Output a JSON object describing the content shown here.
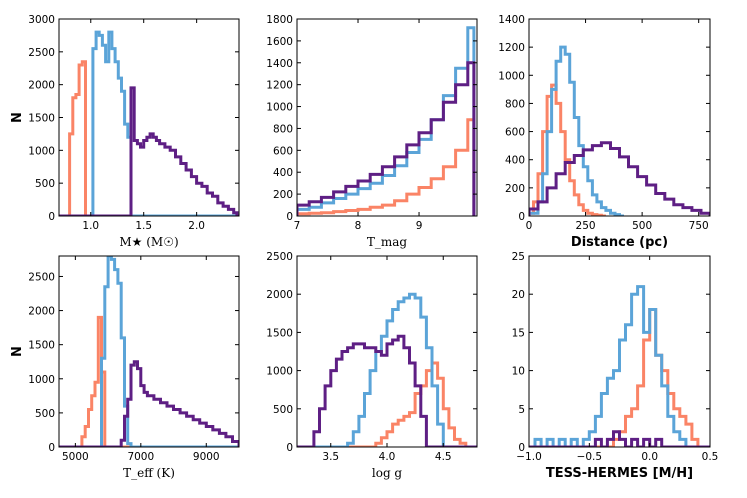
{
  "colors": {
    "orange": "#fa8466",
    "blue": "#5ba4d8",
    "purple": "#5e1f84"
  },
  "ylabel": "N",
  "chart_data": [
    {
      "type": "histogram",
      "xlabel": "M★ (M☉)",
      "xlim": [
        0.7,
        2.4
      ],
      "ylim": [
        0,
        3000
      ],
      "xticks": [
        1.0,
        1.5,
        2.0
      ],
      "xtick_labels": [
        "1.0",
        "1.5",
        "2.0"
      ],
      "yticks": [
        0,
        500,
        1000,
        1500,
        2000,
        2500,
        3000
      ],
      "ytick_labels": [
        "0",
        "500",
        "1000",
        "1500",
        "2000",
        "2500",
        "3000"
      ],
      "series": [
        {
          "name": "orange",
          "color": "orange",
          "edges": [
            0.7,
            0.8,
            0.83,
            0.86,
            0.89,
            0.92,
            0.95,
            0.98,
            1.0,
            2.4
          ],
          "values": [
            0,
            1250,
            1800,
            1850,
            2300,
            2350,
            0,
            0,
            0
          ]
        },
        {
          "name": "blue",
          "color": "blue",
          "edges": [
            0.7,
            1.02,
            1.05,
            1.08,
            1.11,
            1.14,
            1.17,
            1.2,
            1.23,
            1.26,
            1.29,
            1.32,
            1.35,
            1.38,
            2.4
          ],
          "values": [
            0,
            2550,
            2800,
            2750,
            2600,
            2350,
            2800,
            2550,
            2350,
            2100,
            1900,
            1400,
            1200,
            0
          ]
        },
        {
          "name": "purple",
          "color": "purple",
          "edges": [
            0.7,
            1.38,
            1.41,
            1.44,
            1.47,
            1.5,
            1.53,
            1.56,
            1.59,
            1.62,
            1.65,
            1.7,
            1.75,
            1.8,
            1.85,
            1.9,
            1.95,
            2.0,
            2.05,
            2.1,
            2.15,
            2.2,
            2.25,
            2.3,
            2.35,
            2.38,
            2.4
          ],
          "values": [
            0,
            1950,
            1150,
            1100,
            1050,
            1150,
            1200,
            1250,
            1200,
            1150,
            1100,
            1050,
            1000,
            900,
            800,
            700,
            600,
            500,
            450,
            350,
            300,
            200,
            150,
            100,
            50,
            0
          ]
        }
      ]
    },
    {
      "type": "histogram",
      "xlabel": "T_mag",
      "xlim": [
        7,
        9.95
      ],
      "ylim": [
        0,
        1800
      ],
      "xticks": [
        7,
        8,
        9
      ],
      "xtick_labels": [
        "7",
        "8",
        "9"
      ],
      "yticks": [
        0,
        200,
        400,
        600,
        800,
        1000,
        1200,
        1400,
        1600,
        1800
      ],
      "ytick_labels": [
        "0",
        "200",
        "400",
        "600",
        "800",
        "1000",
        "1200",
        "1400",
        "1600",
        "1800"
      ],
      "series": [
        {
          "name": "orange",
          "color": "orange",
          "edges": [
            7,
            7.2,
            7.4,
            7.6,
            7.8,
            8,
            8.2,
            8.4,
            8.6,
            8.8,
            9,
            9.2,
            9.4,
            9.6,
            9.8,
            9.9
          ],
          "values": [
            20,
            25,
            30,
            40,
            50,
            60,
            80,
            100,
            140,
            200,
            260,
            340,
            450,
            600,
            880
          ]
        },
        {
          "name": "blue",
          "color": "blue",
          "edges": [
            7,
            7.2,
            7.4,
            7.6,
            7.8,
            8,
            8.2,
            8.4,
            8.6,
            8.8,
            9,
            9.2,
            9.4,
            9.6,
            9.8,
            9.9
          ],
          "values": [
            60,
            80,
            120,
            160,
            200,
            250,
            300,
            370,
            460,
            580,
            700,
            880,
            1100,
            1350,
            1720
          ]
        },
        {
          "name": "purple",
          "color": "purple",
          "edges": [
            7,
            7.2,
            7.4,
            7.6,
            7.8,
            8,
            8.2,
            8.4,
            8.6,
            8.8,
            9,
            9.2,
            9.4,
            9.6,
            9.8,
            9.9
          ],
          "values": [
            100,
            130,
            170,
            220,
            270,
            320,
            380,
            450,
            540,
            650,
            760,
            880,
            1040,
            1200,
            1400
          ]
        }
      ]
    },
    {
      "type": "histogram",
      "xlabel": "Distance (pc)",
      "xlim": [
        0,
        800
      ],
      "ylim": [
        0,
        1400
      ],
      "xticks": [
        0,
        250,
        500,
        750
      ],
      "xtick_labels": [
        "0",
        "250",
        "500",
        "750"
      ],
      "yticks": [
        0,
        200,
        400,
        600,
        800,
        1000,
        1200,
        1400
      ],
      "ytick_labels": [
        "0",
        "200",
        "400",
        "600",
        "800",
        "1000",
        "1200",
        "1400"
      ],
      "series": [
        {
          "name": "orange",
          "color": "orange",
          "edges": [
            0,
            20,
            40,
            60,
            80,
            100,
            120,
            140,
            160,
            180,
            200,
            220,
            240,
            260,
            280,
            300,
            320,
            340
          ],
          "values": [
            20,
            100,
            300,
            600,
            850,
            930,
            800,
            600,
            400,
            250,
            150,
            80,
            40,
            20,
            10,
            5,
            0
          ]
        },
        {
          "name": "blue",
          "color": "blue",
          "edges": [
            0,
            40,
            60,
            80,
            100,
            120,
            140,
            160,
            180,
            200,
            220,
            240,
            260,
            280,
            300,
            320,
            340,
            360,
            380,
            400,
            420
          ],
          "values": [
            20,
            100,
            300,
            600,
            900,
            1100,
            1200,
            1150,
            950,
            700,
            500,
            350,
            250,
            150,
            100,
            60,
            40,
            20,
            10,
            0
          ]
        },
        {
          "name": "purple",
          "color": "purple",
          "edges": [
            0,
            40,
            80,
            120,
            160,
            200,
            240,
            280,
            320,
            360,
            400,
            440,
            480,
            520,
            560,
            600,
            640,
            680,
            720,
            760,
            800
          ],
          "values": [
            50,
            100,
            200,
            300,
            380,
            430,
            470,
            500,
            520,
            480,
            420,
            350,
            280,
            220,
            160,
            120,
            80,
            60,
            40,
            20
          ]
        }
      ]
    },
    {
      "type": "histogram",
      "xlabel": "T_eff (K)",
      "xlim": [
        4500,
        10000
      ],
      "ylim": [
        0,
        2800
      ],
      "xticks": [
        5000,
        7000,
        9000
      ],
      "xtick_labels": [
        "5000",
        "7000",
        "9000"
      ],
      "yticks": [
        0,
        500,
        1000,
        1500,
        2000,
        2500
      ],
      "ytick_labels": [
        "0",
        "500",
        "1000",
        "1500",
        "2000",
        "2500"
      ],
      "series": [
        {
          "name": "orange",
          "color": "orange",
          "edges": [
            4500,
            5200,
            5300,
            5400,
            5500,
            5600,
            5700,
            5800,
            5900,
            10000
          ],
          "values": [
            0,
            150,
            300,
            550,
            750,
            950,
            1900,
            1100,
            0
          ]
        },
        {
          "name": "blue",
          "color": "blue",
          "edges": [
            4500,
            5800,
            5900,
            6000,
            6100,
            6200,
            6300,
            6400,
            6500,
            6600,
            6700,
            10000
          ],
          "values": [
            0,
            1300,
            2350,
            2800,
            2750,
            2600,
            2400,
            1600,
            600,
            50,
            0
          ]
        },
        {
          "name": "purple",
          "color": "purple",
          "edges": [
            4500,
            6400,
            6500,
            6600,
            6700,
            6800,
            6900,
            7000,
            7100,
            7200,
            7400,
            7600,
            7800,
            8000,
            8200,
            8400,
            8600,
            8800,
            9000,
            9200,
            9400,
            9600,
            9800,
            10000
          ],
          "values": [
            0,
            100,
            450,
            700,
            1200,
            1250,
            1150,
            900,
            800,
            750,
            700,
            650,
            600,
            550,
            500,
            450,
            400,
            350,
            300,
            250,
            200,
            150,
            80
          ]
        }
      ]
    },
    {
      "type": "histogram",
      "xlabel": "log g",
      "xlim": [
        3.2,
        4.8
      ],
      "ylim": [
        0,
        2500
      ],
      "xticks": [
        3.5,
        4.0,
        4.5
      ],
      "xtick_labels": [
        "3.5",
        "4.0",
        "4.5"
      ],
      "yticks": [
        0,
        500,
        1000,
        1500,
        2000,
        2500
      ],
      "ytick_labels": [
        "0",
        "500",
        "1000",
        "1500",
        "2000",
        "2500"
      ],
      "series": [
        {
          "name": "orange",
          "color": "orange",
          "edges": [
            3.2,
            3.9,
            3.95,
            4.0,
            4.05,
            4.1,
            4.15,
            4.2,
            4.25,
            4.3,
            4.35,
            4.4,
            4.45,
            4.5,
            4.55,
            4.6,
            4.65,
            4.7,
            4.8
          ],
          "values": [
            0,
            50,
            120,
            200,
            300,
            350,
            400,
            450,
            700,
            800,
            1000,
            1100,
            900,
            500,
            250,
            100,
            50,
            0
          ]
        },
        {
          "name": "blue",
          "color": "blue",
          "edges": [
            3.2,
            3.65,
            3.7,
            3.75,
            3.8,
            3.85,
            3.9,
            3.95,
            4.0,
            4.05,
            4.1,
            4.15,
            4.2,
            4.25,
            4.3,
            4.35,
            4.4,
            4.45,
            4.5,
            4.8
          ],
          "values": [
            0,
            50,
            200,
            400,
            700,
            1000,
            1250,
            1450,
            1650,
            1800,
            1900,
            1950,
            2000,
            1950,
            1700,
            1300,
            800,
            300,
            0
          ]
        },
        {
          "name": "purple",
          "color": "purple",
          "edges": [
            3.2,
            3.35,
            3.4,
            3.45,
            3.5,
            3.55,
            3.6,
            3.65,
            3.7,
            3.75,
            3.8,
            3.85,
            3.9,
            3.95,
            4.0,
            4.05,
            4.1,
            4.15,
            4.2,
            4.25,
            4.3,
            4.35,
            4.8
          ],
          "values": [
            0,
            200,
            500,
            800,
            1000,
            1150,
            1250,
            1300,
            1350,
            1350,
            1300,
            1300,
            1250,
            1200,
            1350,
            1400,
            1450,
            1300,
            1100,
            800,
            400,
            0
          ]
        }
      ]
    },
    {
      "type": "histogram",
      "xlabel": "TESS-HERMES [M/H]",
      "xlim": [
        -1.0,
        0.5
      ],
      "ylim": [
        0,
        25
      ],
      "xticks": [
        -1.0,
        -0.5,
        0.0,
        0.5
      ],
      "xtick_labels": [
        "−1.0",
        "−0.5",
        "0.0",
        "0.5"
      ],
      "yticks": [
        0,
        5,
        10,
        15,
        20,
        25
      ],
      "ytick_labels": [
        "0",
        "5",
        "10",
        "15",
        "20",
        "25"
      ],
      "series": [
        {
          "name": "orange",
          "color": "orange",
          "edges": [
            -1,
            -0.3,
            -0.25,
            -0.2,
            -0.15,
            -0.1,
            -0.05,
            0,
            0.05,
            0.1,
            0.15,
            0.2,
            0.25,
            0.3,
            0.35,
            0.4,
            0.5
          ],
          "values": [
            0,
            1,
            2,
            4,
            5,
            8,
            14,
            18,
            12,
            10,
            7,
            5,
            4,
            3,
            1,
            0
          ]
        },
        {
          "name": "blue",
          "color": "blue",
          "edges": [
            -1,
            -0.95,
            -0.9,
            -0.85,
            -0.8,
            -0.75,
            -0.7,
            -0.65,
            -0.6,
            -0.55,
            -0.5,
            -0.45,
            -0.4,
            -0.35,
            -0.3,
            -0.25,
            -0.2,
            -0.15,
            -0.1,
            -0.05,
            0,
            0.05,
            0.1,
            0.15,
            0.2,
            0.25,
            0.3,
            0.5
          ],
          "values": [
            0,
            1,
            0,
            1,
            0,
            1,
            0,
            1,
            0,
            1,
            2,
            4,
            7,
            9,
            10,
            14,
            16,
            20,
            21,
            15,
            18,
            12,
            8,
            4,
            2,
            1,
            0
          ]
        },
        {
          "name": "purple",
          "color": "purple",
          "edges": [
            -1,
            -0.45,
            -0.4,
            -0.35,
            -0.3,
            -0.25,
            -0.2,
            -0.15,
            -0.1,
            -0.05,
            0,
            0.05,
            0.1,
            0.5
          ],
          "values": [
            0,
            1,
            0,
            1,
            2,
            1,
            0,
            1,
            0,
            1,
            0,
            1,
            0
          ]
        }
      ]
    }
  ]
}
